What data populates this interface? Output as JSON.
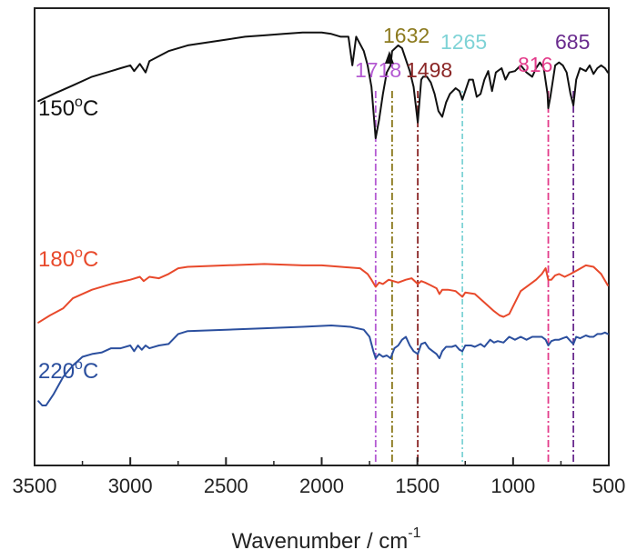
{
  "chart_data": {
    "type": "line",
    "title": "",
    "xlabel": "Wavenumber / cm",
    "xlabel_superscript": "-1",
    "ylabel": "",
    "xlim": [
      3500,
      500
    ],
    "ylim": [
      -2.2,
      1.0
    ],
    "x_ticks": [
      3500,
      3000,
      2500,
      2000,
      1500,
      1000,
      500
    ],
    "grid": false,
    "legend": "none",
    "series": [
      {
        "name": "150°C",
        "label_main": "150",
        "label_sup": "o",
        "label_tail": "C",
        "color": "#111111",
        "points": [
          [
            3480,
            0.35
          ],
          [
            3400,
            0.4
          ],
          [
            3300,
            0.46
          ],
          [
            3200,
            0.52
          ],
          [
            3100,
            0.56
          ],
          [
            3050,
            0.58
          ],
          [
            3000,
            0.6
          ],
          [
            2980,
            0.56
          ],
          [
            2950,
            0.61
          ],
          [
            2920,
            0.55
          ],
          [
            2900,
            0.63
          ],
          [
            2800,
            0.7
          ],
          [
            2700,
            0.74
          ],
          [
            2600,
            0.76
          ],
          [
            2500,
            0.78
          ],
          [
            2400,
            0.8
          ],
          [
            2300,
            0.81
          ],
          [
            2200,
            0.82
          ],
          [
            2100,
            0.83
          ],
          [
            2000,
            0.83
          ],
          [
            1950,
            0.82
          ],
          [
            1900,
            0.8
          ],
          [
            1860,
            0.8
          ],
          [
            1840,
            0.6
          ],
          [
            1820,
            0.8
          ],
          [
            1780,
            0.7
          ],
          [
            1760,
            0.6
          ],
          [
            1740,
            0.45
          ],
          [
            1718,
            0.09
          ],
          [
            1700,
            0.22
          ],
          [
            1680,
            0.4
          ],
          [
            1660,
            0.55
          ],
          [
            1640,
            0.6
          ],
          [
            1632,
            0.7
          ],
          [
            1600,
            0.74
          ],
          [
            1580,
            0.72
          ],
          [
            1560,
            0.64
          ],
          [
            1540,
            0.56
          ],
          [
            1520,
            0.45
          ],
          [
            1498,
            0.2
          ],
          [
            1480,
            0.5
          ],
          [
            1470,
            0.52
          ],
          [
            1450,
            0.52
          ],
          [
            1430,
            0.48
          ],
          [
            1410,
            0.4
          ],
          [
            1390,
            0.28
          ],
          [
            1370,
            0.24
          ],
          [
            1350,
            0.34
          ],
          [
            1330,
            0.4
          ],
          [
            1300,
            0.44
          ],
          [
            1280,
            0.42
          ],
          [
            1265,
            0.36
          ],
          [
            1250,
            0.42
          ],
          [
            1230,
            0.5
          ],
          [
            1210,
            0.5
          ],
          [
            1190,
            0.38
          ],
          [
            1170,
            0.4
          ],
          [
            1150,
            0.5
          ],
          [
            1130,
            0.56
          ],
          [
            1110,
            0.42
          ],
          [
            1090,
            0.55
          ],
          [
            1060,
            0.58
          ],
          [
            1040,
            0.5
          ],
          [
            1020,
            0.55
          ],
          [
            990,
            0.56
          ],
          [
            960,
            0.6
          ],
          [
            930,
            0.55
          ],
          [
            900,
            0.52
          ],
          [
            880,
            0.58
          ],
          [
            860,
            0.62
          ],
          [
            840,
            0.58
          ],
          [
            820,
            0.4
          ],
          [
            816,
            0.3
          ],
          [
            805,
            0.38
          ],
          [
            780,
            0.6
          ],
          [
            760,
            0.62
          ],
          [
            740,
            0.6
          ],
          [
            720,
            0.55
          ],
          [
            700,
            0.4
          ],
          [
            685,
            0.32
          ],
          [
            670,
            0.5
          ],
          [
            650,
            0.58
          ],
          [
            620,
            0.56
          ],
          [
            600,
            0.6
          ],
          [
            580,
            0.54
          ],
          [
            560,
            0.58
          ],
          [
            540,
            0.6
          ],
          [
            520,
            0.58
          ],
          [
            505,
            0.55
          ]
        ]
      },
      {
        "name": "180°C",
        "label_main": "180",
        "label_sup": "o",
        "label_tail": "C",
        "color": "#e8492b",
        "points": [
          [
            3480,
            -1.2
          ],
          [
            3420,
            -1.15
          ],
          [
            3350,
            -1.1
          ],
          [
            3300,
            -1.03
          ],
          [
            3200,
            -0.97
          ],
          [
            3100,
            -0.93
          ],
          [
            3000,
            -0.9
          ],
          [
            2950,
            -0.88
          ],
          [
            2930,
            -0.91
          ],
          [
            2900,
            -0.88
          ],
          [
            2850,
            -0.89
          ],
          [
            2800,
            -0.86
          ],
          [
            2750,
            -0.82
          ],
          [
            2700,
            -0.81
          ],
          [
            2500,
            -0.8
          ],
          [
            2300,
            -0.79
          ],
          [
            2100,
            -0.8
          ],
          [
            2000,
            -0.8
          ],
          [
            1900,
            -0.81
          ],
          [
            1800,
            -0.82
          ],
          [
            1760,
            -0.86
          ],
          [
            1740,
            -0.9
          ],
          [
            1718,
            -0.95
          ],
          [
            1700,
            -0.92
          ],
          [
            1680,
            -0.93
          ],
          [
            1650,
            -0.9
          ],
          [
            1600,
            -0.92
          ],
          [
            1560,
            -0.9
          ],
          [
            1530,
            -0.89
          ],
          [
            1498,
            -0.93
          ],
          [
            1480,
            -0.91
          ],
          [
            1460,
            -0.92
          ],
          [
            1430,
            -0.94
          ],
          [
            1400,
            -0.96
          ],
          [
            1385,
            -1.0
          ],
          [
            1370,
            -0.97
          ],
          [
            1340,
            -0.97
          ],
          [
            1300,
            -0.98
          ],
          [
            1265,
            -1.02
          ],
          [
            1250,
            -0.99
          ],
          [
            1200,
            -1.0
          ],
          [
            1150,
            -1.06
          ],
          [
            1100,
            -1.12
          ],
          [
            1070,
            -1.15
          ],
          [
            1050,
            -1.16
          ],
          [
            1020,
            -1.14
          ],
          [
            990,
            -1.06
          ],
          [
            960,
            -0.98
          ],
          [
            920,
            -0.94
          ],
          [
            880,
            -0.9
          ],
          [
            850,
            -0.86
          ],
          [
            830,
            -0.82
          ],
          [
            816,
            -0.9
          ],
          [
            800,
            -0.9
          ],
          [
            780,
            -0.87
          ],
          [
            760,
            -0.86
          ],
          [
            730,
            -0.88
          ],
          [
            700,
            -0.86
          ],
          [
            660,
            -0.83
          ],
          [
            620,
            -0.8
          ],
          [
            580,
            -0.81
          ],
          [
            540,
            -0.86
          ],
          [
            505,
            -0.94
          ]
        ]
      },
      {
        "name": "220°C",
        "label_main": "220",
        "label_sup": "o",
        "label_tail": "C",
        "color": "#2b4f9e",
        "points": [
          [
            3480,
            -1.75
          ],
          [
            3460,
            -1.78
          ],
          [
            3440,
            -1.78
          ],
          [
            3400,
            -1.7
          ],
          [
            3350,
            -1.58
          ],
          [
            3300,
            -1.5
          ],
          [
            3250,
            -1.44
          ],
          [
            3200,
            -1.42
          ],
          [
            3150,
            -1.41
          ],
          [
            3100,
            -1.38
          ],
          [
            3050,
            -1.38
          ],
          [
            3000,
            -1.36
          ],
          [
            2980,
            -1.4
          ],
          [
            2960,
            -1.36
          ],
          [
            2940,
            -1.39
          ],
          [
            2920,
            -1.36
          ],
          [
            2900,
            -1.38
          ],
          [
            2850,
            -1.36
          ],
          [
            2800,
            -1.35
          ],
          [
            2750,
            -1.28
          ],
          [
            2700,
            -1.26
          ],
          [
            2500,
            -1.25
          ],
          [
            2300,
            -1.24
          ],
          [
            2100,
            -1.23
          ],
          [
            1950,
            -1.22
          ],
          [
            1850,
            -1.23
          ],
          [
            1780,
            -1.25
          ],
          [
            1750,
            -1.3
          ],
          [
            1730,
            -1.4
          ],
          [
            1718,
            -1.45
          ],
          [
            1700,
            -1.42
          ],
          [
            1680,
            -1.44
          ],
          [
            1660,
            -1.43
          ],
          [
            1640,
            -1.45
          ],
          [
            1620,
            -1.38
          ],
          [
            1600,
            -1.36
          ],
          [
            1580,
            -1.32
          ],
          [
            1560,
            -1.3
          ],
          [
            1540,
            -1.36
          ],
          [
            1520,
            -1.4
          ],
          [
            1498,
            -1.42
          ],
          [
            1480,
            -1.35
          ],
          [
            1460,
            -1.34
          ],
          [
            1440,
            -1.38
          ],
          [
            1420,
            -1.4
          ],
          [
            1400,
            -1.42
          ],
          [
            1385,
            -1.45
          ],
          [
            1370,
            -1.4
          ],
          [
            1350,
            -1.37
          ],
          [
            1320,
            -1.37
          ],
          [
            1300,
            -1.36
          ],
          [
            1280,
            -1.39
          ],
          [
            1265,
            -1.4
          ],
          [
            1250,
            -1.36
          ],
          [
            1220,
            -1.36
          ],
          [
            1200,
            -1.37
          ],
          [
            1170,
            -1.35
          ],
          [
            1150,
            -1.37
          ],
          [
            1120,
            -1.32
          ],
          [
            1100,
            -1.34
          ],
          [
            1080,
            -1.33
          ],
          [
            1050,
            -1.34
          ],
          [
            1020,
            -1.3
          ],
          [
            990,
            -1.32
          ],
          [
            960,
            -1.3
          ],
          [
            930,
            -1.32
          ],
          [
            900,
            -1.3
          ],
          [
            870,
            -1.3
          ],
          [
            850,
            -1.3
          ],
          [
            830,
            -1.32
          ],
          [
            816,
            -1.36
          ],
          [
            800,
            -1.33
          ],
          [
            780,
            -1.32
          ],
          [
            760,
            -1.32
          ],
          [
            740,
            -1.31
          ],
          [
            720,
            -1.3
          ],
          [
            700,
            -1.33
          ],
          [
            685,
            -1.35
          ],
          [
            670,
            -1.3
          ],
          [
            650,
            -1.31
          ],
          [
            620,
            -1.29
          ],
          [
            600,
            -1.3
          ],
          [
            580,
            -1.3
          ],
          [
            560,
            -1.28
          ],
          [
            540,
            -1.28
          ],
          [
            520,
            -1.27
          ],
          [
            505,
            -1.28
          ]
        ]
      }
    ],
    "peak_markers": [
      {
        "label": "1718",
        "x": 1718,
        "color": "#b45ad2",
        "style": "dash-dot"
      },
      {
        "label": "1632",
        "x": 1632,
        "color": "#8c7a1e",
        "style": "dash-dot",
        "arrow": true
      },
      {
        "label": "1498",
        "x": 1498,
        "color": "#8b2727",
        "style": "dash-dot"
      },
      {
        "label": "1265",
        "x": 1265,
        "color": "#7fd3d6",
        "style": "dot-dash"
      },
      {
        "label": "816",
        "x": 816,
        "color": "#e33b8a",
        "style": "dash-dot"
      },
      {
        "label": "685",
        "x": 685,
        "color": "#6a2b8e",
        "style": "dash-dot"
      }
    ]
  }
}
